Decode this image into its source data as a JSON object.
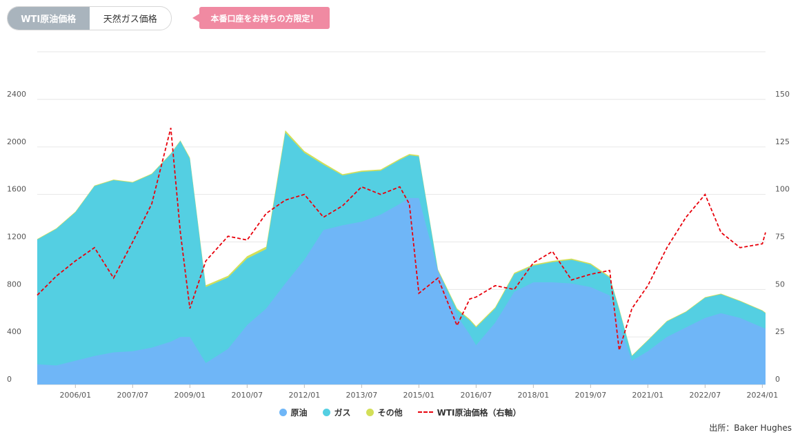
{
  "tabs": [
    {
      "label": "WTI原油価格",
      "active": true
    },
    {
      "label": "天然ガス価格",
      "active": false
    }
  ],
  "promo": {
    "label": "本番口座をお持ちの方限定！"
  },
  "source": "出所：Baker Hughes",
  "colors": {
    "oil": "#6fb6f7",
    "gas": "#54cfe2",
    "other": "#d3df58",
    "wti": "#e8000b",
    "tab_active": "#a9b4bd",
    "promo": "#f08aa2"
  },
  "chart_data": {
    "type": "area",
    "stacked": true,
    "grid": true,
    "legend_position": "bottom",
    "x_range": [
      "2005-01",
      "2024-02"
    ],
    "x_ticks": [
      "2006/01",
      "2007/07",
      "2009/01",
      "2010/07",
      "2012/01",
      "2013/07",
      "2015/01",
      "2016/07",
      "2018/01",
      "2019/07",
      "2021/01",
      "2022/07",
      "2024/01"
    ],
    "y_left": {
      "min": 0,
      "max": 2400,
      "ticks": [
        0,
        400,
        800,
        1200,
        1600,
        2000,
        2400
      ]
    },
    "y_right": {
      "min": 0,
      "max": 150,
      "ticks": [
        0,
        25,
        50,
        75,
        100,
        125,
        150
      ]
    },
    "x": [
      "2005-01",
      "2005-07",
      "2006-01",
      "2006-07",
      "2007-01",
      "2007-07",
      "2008-01",
      "2008-07",
      "2008-10",
      "2009-01",
      "2009-06",
      "2010-01",
      "2010-07",
      "2011-01",
      "2011-07",
      "2012-01",
      "2012-07",
      "2013-01",
      "2013-07",
      "2014-01",
      "2014-07",
      "2014-10",
      "2015-01",
      "2015-07",
      "2016-01",
      "2016-05",
      "2016-07",
      "2017-01",
      "2017-07",
      "2018-01",
      "2018-07",
      "2019-01",
      "2019-07",
      "2020-01",
      "2020-04",
      "2020-08",
      "2021-01",
      "2021-07",
      "2022-01",
      "2022-07",
      "2022-12",
      "2023-06",
      "2024-01",
      "2024-02"
    ],
    "series": [
      {
        "name": "原油",
        "axis": "left",
        "values": [
          170,
          160,
          200,
          240,
          270,
          280,
          310,
          360,
          400,
          400,
          180,
          300,
          500,
          640,
          850,
          1050,
          1300,
          1340,
          1370,
          1430,
          1520,
          1570,
          1570,
          960,
          580,
          420,
          330,
          520,
          780,
          860,
          860,
          850,
          820,
          750,
          500,
          200,
          280,
          400,
          480,
          560,
          600,
          560,
          480,
          470
        ]
      },
      {
        "name": "ガス",
        "axis": "left",
        "values": [
          1050,
          1150,
          1250,
          1430,
          1450,
          1420,
          1460,
          1580,
          1650,
          1500,
          640,
          600,
          560,
          500,
          1270,
          900,
          550,
          420,
          420,
          370,
          370,
          360,
          350,
          0,
          50,
          120,
          150,
          120,
          150,
          140,
          170,
          200,
          190,
          150,
          130,
          40,
          90,
          130,
          130,
          170,
          160,
          140,
          140,
          130
        ]
      },
      {
        "name": "その他",
        "axis": "left",
        "values": [
          5,
          5,
          5,
          5,
          5,
          5,
          5,
          5,
          5,
          10,
          15,
          15,
          20,
          20,
          20,
          15,
          15,
          10,
          10,
          10,
          10,
          10,
          10,
          10,
          10,
          10,
          10,
          10,
          10,
          10,
          10,
          10,
          10,
          10,
          10,
          5,
          5,
          5,
          5,
          5,
          5,
          5,
          5,
          5
        ]
      },
      {
        "name": "WTI原油価格（右軸）",
        "axis": "right",
        "type": "line",
        "values": [
          47,
          57,
          65,
          72,
          56,
          75,
          95,
          135,
          80,
          40,
          65,
          78,
          76,
          90,
          97,
          100,
          88,
          94,
          104,
          100,
          104,
          95,
          48,
          56,
          31,
          45,
          46,
          52,
          50,
          64,
          70,
          55,
          58,
          60,
          18,
          40,
          52,
          72,
          88,
          100,
          80,
          72,
          74,
          80
        ]
      }
    ]
  },
  "legend": [
    {
      "label": "原油",
      "color": "#6fb6f7",
      "kind": "dot"
    },
    {
      "label": "ガス",
      "color": "#54cfe2",
      "kind": "dot"
    },
    {
      "label": "その他",
      "color": "#d3df58",
      "kind": "dot"
    },
    {
      "label": "WTI原油価格（右軸）",
      "color": "#e8000b",
      "kind": "dash"
    }
  ]
}
